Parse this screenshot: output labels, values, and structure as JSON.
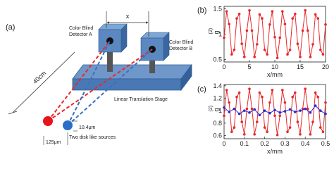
{
  "diagram": {
    "panel_label": "(a)",
    "detector_a": [
      "Color Blind",
      "Detector A"
    ],
    "detector_b": [
      "Color Blind",
      "Detector B"
    ],
    "separation": "x",
    "distance": "40cm",
    "stage": "Linear Translation Stage",
    "source_gap": "10.4μm",
    "source_size": "125μm",
    "sources": "Two disk like sources"
  },
  "chart_data": [
    {
      "type": "line",
      "panel_label": "(b)",
      "ylabel": "g",
      "ylabel_superscript": "(2)",
      "xlabel": "x/mm",
      "xlim": [
        0,
        20
      ],
      "xticks": [
        0,
        5,
        10,
        15,
        20
      ],
      "ylim": [
        0.45,
        1.55
      ],
      "yticks": [
        0.5,
        1,
        1.5
      ],
      "marker": "circle",
      "series": [
        {
          "color": "#e8282b",
          "x": [
            0,
            0.5,
            1,
            1.5,
            2,
            2.5,
            3,
            3.5,
            4,
            4.5,
            5,
            5.5,
            6,
            6.5,
            7,
            7.5,
            8,
            8.5,
            9,
            9.5,
            10,
            10.5,
            11,
            11.5,
            12,
            12.5,
            13,
            13.5,
            14,
            14.5,
            15,
            15.5,
            16,
            16.5,
            17,
            17.5,
            18,
            18.5,
            19,
            19.5,
            20
          ],
          "values": [
            0.93,
            1.45,
            1.2,
            0.6,
            0.69,
            1.31,
            1.4,
            0.81,
            0.55,
            1.07,
            1.47,
            1.07,
            0.55,
            0.8,
            1.39,
            1.31,
            0.69,
            0.6,
            1.19,
            1.45,
            0.94,
            0.53,
            0.93,
            1.45,
            1.2,
            0.6,
            0.69,
            1.31,
            1.4,
            0.81,
            0.55,
            1.07,
            1.47,
            1.07,
            0.55,
            0.8,
            1.39,
            1.31,
            0.69,
            0.6,
            1.19
          ]
        }
      ]
    },
    {
      "type": "line",
      "panel_label": "(c)",
      "ylabel": "g",
      "ylabel_superscript": "(2)",
      "xlabel": "x/mm",
      "xlim": [
        0,
        0.5
      ],
      "xticks": [
        0,
        0.1,
        0.2,
        0.3,
        0.4,
        0.5
      ],
      "ylim": [
        0.55,
        1.42
      ],
      "yticks": [
        0.6,
        0.8,
        1,
        1.2,
        1.4
      ],
      "marker": "circle",
      "series": [
        {
          "color": "#e8282b",
          "x": [
            0,
            0.0125,
            0.025,
            0.0375,
            0.05,
            0.0625,
            0.075,
            0.0875,
            0.1,
            0.1125,
            0.125,
            0.1375,
            0.15,
            0.1625,
            0.175,
            0.1875,
            0.2,
            0.2125,
            0.225,
            0.2375,
            0.25,
            0.2625,
            0.275,
            0.2875,
            0.3,
            0.3125,
            0.325,
            0.3375,
            0.35,
            0.3625,
            0.375,
            0.3875,
            0.4,
            0.4125,
            0.425,
            0.4375,
            0.45,
            0.4625,
            0.475,
            0.4875,
            0.5
          ],
          "values": [
            0.92,
            1.33,
            1.13,
            0.66,
            0.73,
            1.22,
            1.29,
            0.82,
            0.62,
            1.03,
            1.35,
            1.03,
            0.62,
            0.82,
            1.29,
            1.22,
            0.73,
            0.66,
            1.13,
            1.33,
            0.92,
            0.61,
            0.92,
            1.33,
            1.13,
            0.66,
            0.73,
            1.22,
            1.29,
            0.82,
            0.62,
            1.03,
            1.35,
            1.03,
            0.62,
            0.82,
            1.29,
            1.22,
            0.73,
            0.66,
            1.13
          ]
        },
        {
          "color": "#2b2bd0",
          "x": [
            0,
            0.025,
            0.05,
            0.075,
            0.1,
            0.125,
            0.15,
            0.175,
            0.2,
            0.225,
            0.25,
            0.275,
            0.3,
            0.325,
            0.35,
            0.375,
            0.4,
            0.425,
            0.45,
            0.475,
            0.5
          ],
          "values": [
            1.05,
            0.98,
            1.03,
            0.95,
            1,
            0.97,
            1.02,
            0.93,
            1,
            0.96,
            1.01,
            0.97,
            0.99,
            1.02,
            0.98,
            1,
            1.03,
            0.97,
            1.08,
            1,
            0.95
          ]
        }
      ]
    }
  ]
}
